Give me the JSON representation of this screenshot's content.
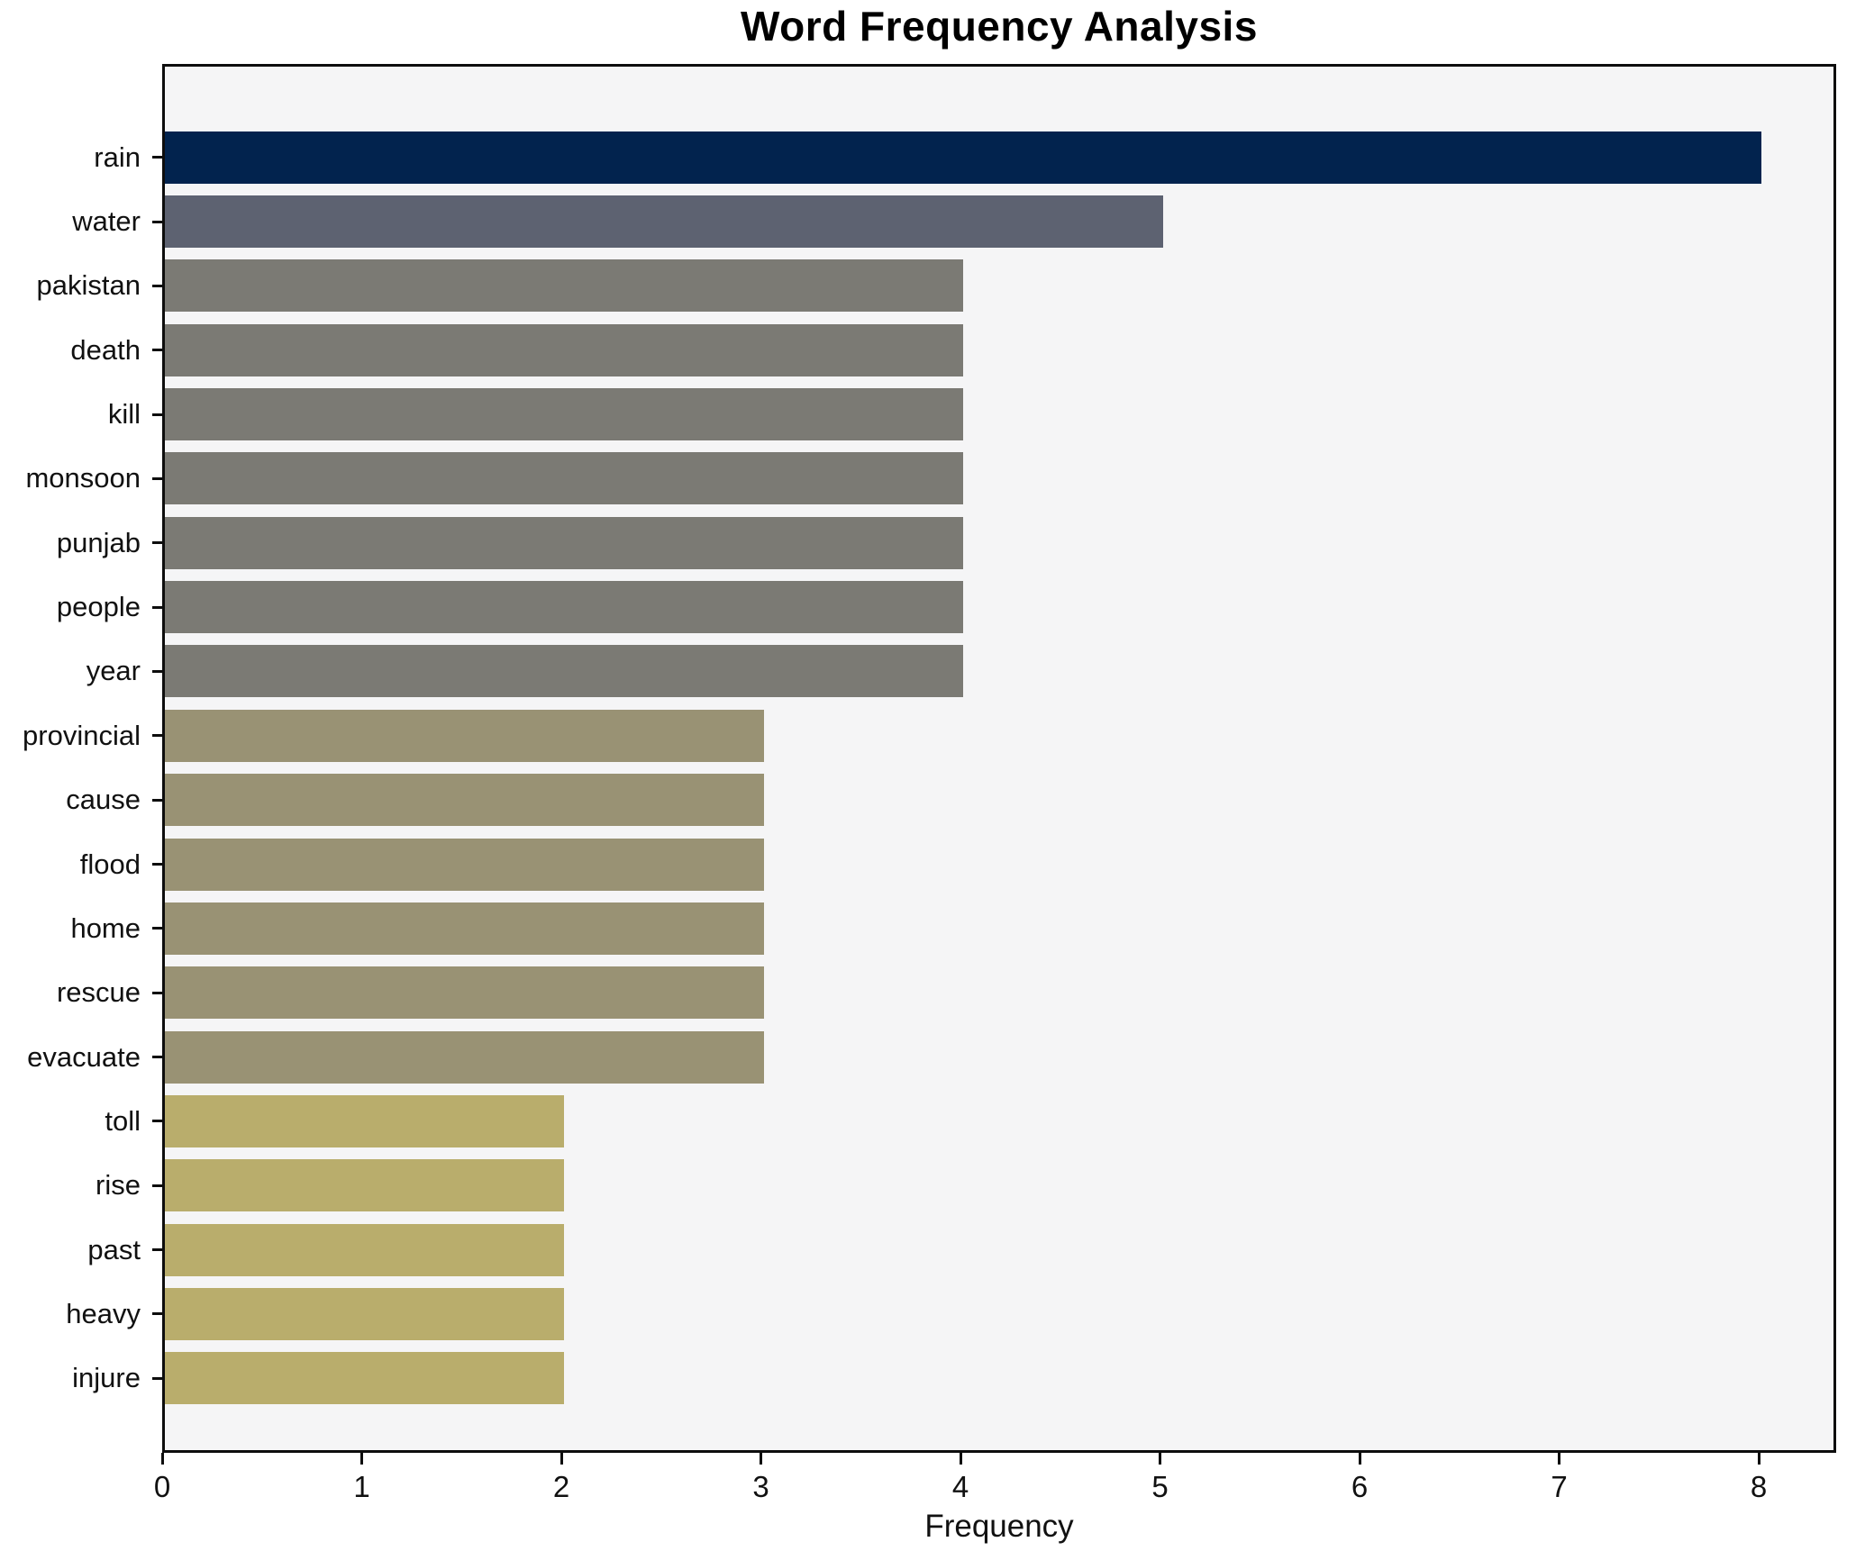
{
  "chart_data": {
    "type": "bar",
    "orientation": "horizontal",
    "title": "Word Frequency Analysis",
    "xlabel": "Frequency",
    "ylabel": "",
    "categories": [
      "rain",
      "water",
      "pakistan",
      "death",
      "kill",
      "monsoon",
      "punjab",
      "people",
      "year",
      "provincial",
      "cause",
      "flood",
      "home",
      "rescue",
      "evacuate",
      "toll",
      "rise",
      "past",
      "heavy",
      "injure"
    ],
    "values": [
      8,
      5,
      4,
      4,
      4,
      4,
      4,
      4,
      4,
      3,
      3,
      3,
      3,
      3,
      3,
      2,
      2,
      2,
      2,
      2
    ],
    "bar_colors": [
      "#02234e",
      "#5d6271",
      "#7b7a74",
      "#7b7a74",
      "#7b7a74",
      "#7b7a74",
      "#7b7a74",
      "#7b7a74",
      "#7b7a74",
      "#999274",
      "#999274",
      "#999274",
      "#999274",
      "#999274",
      "#999274",
      "#b9ad6c",
      "#b9ad6c",
      "#b9ad6c",
      "#b9ad6c",
      "#b9ad6c"
    ],
    "xticks": [
      0,
      1,
      2,
      3,
      4,
      5,
      6,
      7,
      8
    ],
    "xlim": [
      0,
      8.4
    ],
    "grid": false,
    "legend": false,
    "plot_background": "#f5f5f6",
    "figure_background": "#ffffff",
    "spine_color": "#0d0d0d"
  }
}
